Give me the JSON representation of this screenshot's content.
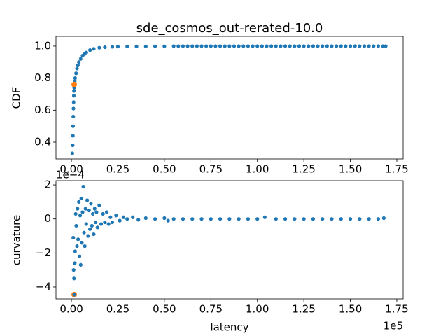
{
  "chart_data": [
    {
      "type": "scatter",
      "title": "sde_cosmos_out-rerated-10.0",
      "ylabel": "CDF",
      "xlim": [
        -8300,
        178400
      ],
      "ylim": [
        0.295,
        1.061
      ],
      "xticks": [
        {
          "value": 0,
          "label": "0.00"
        },
        {
          "value": 25000,
          "label": "0.25"
        },
        {
          "value": 50000,
          "label": "0.50"
        },
        {
          "value": 75000,
          "label": "0.75"
        },
        {
          "value": 100000,
          "label": "1.00"
        },
        {
          "value": 125000,
          "label": "1.25"
        },
        {
          "value": 150000,
          "label": "1.50"
        },
        {
          "value": 175000,
          "label": "1.75"
        }
      ],
      "yticks": [
        0.4,
        0.6,
        0.8,
        {
          "value": 1,
          "label": "1.0"
        }
      ],
      "series": [
        {
          "color": "#1f77b4",
          "x": [
            500,
            700,
            800,
            900,
            1000,
            1100,
            1200,
            1300,
            1400,
            1500,
            1600,
            1800,
            2000,
            2500,
            3000,
            3500,
            4000,
            5000,
            6000,
            7000,
            8000,
            10000,
            12000,
            15000,
            18000,
            22000,
            25000,
            30000,
            35000,
            40000,
            45000,
            50000,
            55000,
            57500,
            60000,
            62500,
            65000,
            67500,
            70000,
            72500,
            75000,
            77500,
            80000,
            82500,
            85000,
            87500,
            90000,
            92500,
            95000,
            97500,
            100000,
            102500,
            105000,
            107500,
            110000,
            112500,
            115000,
            117500,
            120000,
            122500,
            125000,
            127500,
            130000,
            132500,
            135000,
            137500,
            140000,
            142500,
            145000,
            147500,
            150000,
            152500,
            155000,
            157500,
            160000,
            162500,
            165000,
            167500,
            169000
          ],
          "values": [
            0.33,
            0.38,
            0.44,
            0.5,
            0.56,
            0.61,
            0.65,
            0.69,
            0.72,
            0.74,
            0.76,
            0.78,
            0.8,
            0.83,
            0.86,
            0.88,
            0.9,
            0.92,
            0.94,
            0.95,
            0.96,
            0.975,
            0.983,
            0.99,
            0.993,
            0.996,
            0.997,
            0.998,
            0.998,
            0.998,
            0.999,
            0.999,
            1,
            1,
            1,
            1,
            1,
            1,
            1,
            1,
            1,
            1,
            1,
            1,
            1,
            1,
            1,
            1,
            1,
            1,
            1,
            1,
            1,
            1,
            1,
            1,
            1,
            1,
            1,
            1,
            1,
            1,
            1,
            1,
            1,
            1,
            1,
            1,
            1,
            1,
            1,
            1,
            1,
            1,
            1,
            1,
            1,
            1,
            1
          ]
        },
        {
          "color": "#ff7f0e",
          "x": [
            1500
          ],
          "values": [
            0.76
          ]
        }
      ]
    },
    {
      "type": "scatter",
      "xlabel": "latency",
      "ylabel": "curvature",
      "x_offset": "1e5",
      "y_offset": "1e−4",
      "xlim": [
        -8300,
        178400
      ],
      "ylim": [
        -0.00047,
        0.000225
      ],
      "xticks": [
        {
          "value": 0,
          "label": "0.00"
        },
        {
          "value": 25000,
          "label": "0.25"
        },
        {
          "value": 50000,
          "label": "0.50"
        },
        {
          "value": 75000,
          "label": "0.75"
        },
        {
          "value": 100000,
          "label": "1.00"
        },
        {
          "value": 125000,
          "label": "1.25"
        },
        {
          "value": 150000,
          "label": "1.50"
        },
        {
          "value": 175000,
          "label": "1.75"
        }
      ],
      "yticks": [
        {
          "value": -0.0004,
          "label": "−4"
        },
        {
          "value": -0.0002,
          "label": "−2"
        },
        0,
        {
          "value": 0.0002,
          "label": "2"
        }
      ],
      "series": [
        {
          "color": "#ff7f0e",
          "x": [
            1500
          ],
          "values": [
            -0.000445
          ]
        },
        {
          "color": "#1f77b4",
          "x": [
            1000,
            1200,
            1400,
            1500,
            1800,
            2000,
            2300,
            2600,
            3000,
            3300,
            3600,
            4000,
            4300,
            4700,
            5000,
            5300,
            5600,
            6000,
            6400,
            6800,
            7200,
            7600,
            8000,
            8500,
            9000,
            9500,
            10000,
            10500,
            11000,
            11500,
            12000,
            12500,
            13000,
            13500,
            14000,
            15000,
            16000,
            17000,
            18000,
            19000,
            20000,
            21000,
            22000,
            24000,
            26000,
            28000,
            30000,
            33000,
            36000,
            40000,
            45000,
            50000,
            52000,
            55000,
            60000,
            65000,
            70000,
            75000,
            80000,
            85000,
            90000,
            95000,
            100000,
            104000,
            110000,
            115000,
            120000,
            125000,
            130000,
            135000,
            140000,
            145000,
            150000,
            155000,
            160000,
            165000,
            168000
          ],
          "values": [
            -0.00011,
            -0.0003,
            -0.00035,
            -0.000445,
            -0.00026,
            -0.00019,
            3e-05,
            -4e-05,
            -0.00016,
            6e-05,
            -0.00012,
            0.0001,
            -0.00022,
            2e-05,
            -0.00027,
            0.00012,
            -0.00014,
            4e-05,
            0.00019,
            -8e-05,
            -0.00016,
            6e-05,
            -3e-05,
            0.00011,
            -0.0001,
            5e-05,
            -6e-05,
            9e-05,
            -4e-05,
            3e-05,
            -9e-05,
            6e-05,
            -2e-05,
            4e-05,
            -5e-05,
            8e-05,
            -3e-05,
            3e-05,
            -2e-05,
            4e-05,
            -3e-05,
            1e-05,
            -2e-05,
            2e-05,
            -1e-05,
            1e-05,
            0,
            1e-05,
            -5e-06,
            5e-06,
            0,
            5e-06,
            -1e-05,
            0,
            0,
            0,
            0,
            0,
            0,
            0,
            0,
            0,
            0,
            1e-05,
            0,
            0,
            0,
            0,
            0,
            0,
            0,
            0,
            0,
            0,
            0,
            0,
            5e-06
          ]
        }
      ]
    }
  ]
}
